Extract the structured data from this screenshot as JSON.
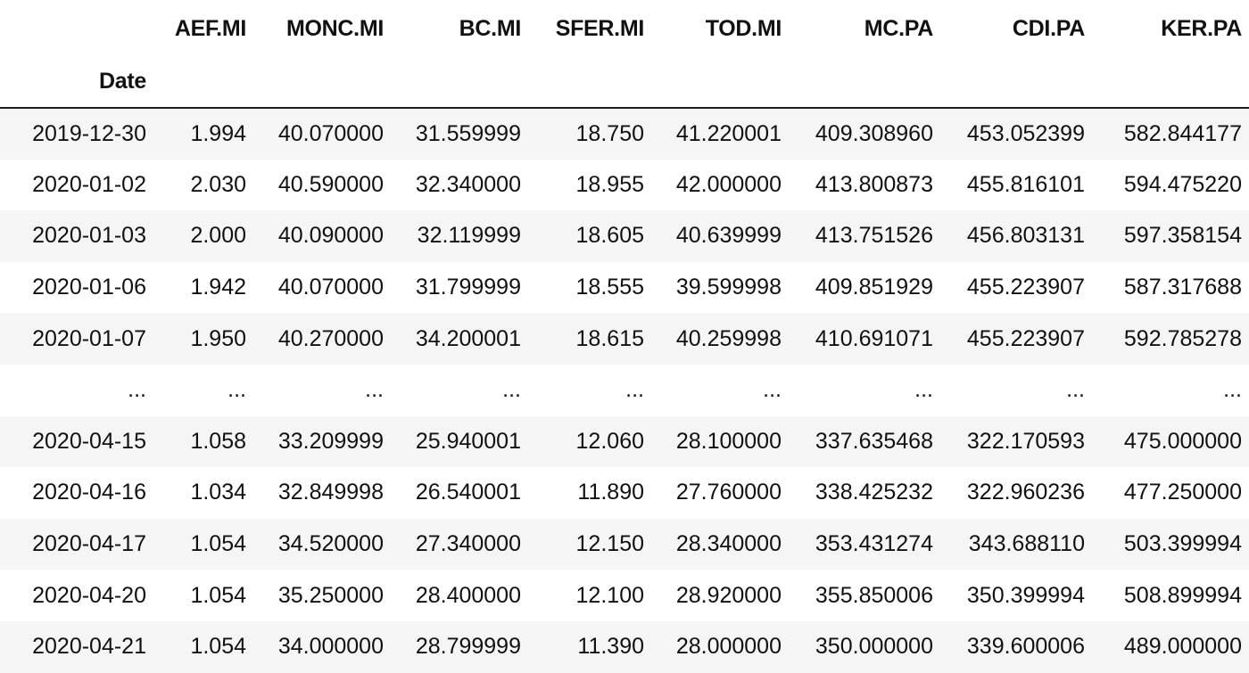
{
  "table": {
    "index_name": "Date",
    "columns": [
      "AEF.MI",
      "MONC.MI",
      "BC.MI",
      "SFER.MI",
      "TOD.MI",
      "MC.PA",
      "CDI.PA",
      "KER.PA"
    ],
    "rows": [
      {
        "index": "2019-12-30",
        "values": [
          "1.994",
          "40.070000",
          "31.559999",
          "18.750",
          "41.220001",
          "409.308960",
          "453.052399",
          "582.844177"
        ]
      },
      {
        "index": "2020-01-02",
        "values": [
          "2.030",
          "40.590000",
          "32.340000",
          "18.955",
          "42.000000",
          "413.800873",
          "455.816101",
          "594.475220"
        ]
      },
      {
        "index": "2020-01-03",
        "values": [
          "2.000",
          "40.090000",
          "32.119999",
          "18.605",
          "40.639999",
          "413.751526",
          "456.803131",
          "597.358154"
        ]
      },
      {
        "index": "2020-01-06",
        "values": [
          "1.942",
          "40.070000",
          "31.799999",
          "18.555",
          "39.599998",
          "409.851929",
          "455.223907",
          "587.317688"
        ]
      },
      {
        "index": "2020-01-07",
        "values": [
          "1.950",
          "40.270000",
          "34.200001",
          "18.615",
          "40.259998",
          "410.691071",
          "455.223907",
          "592.785278"
        ]
      },
      {
        "index": "...",
        "values": [
          "...",
          "...",
          "...",
          "...",
          "...",
          "...",
          "...",
          "..."
        ]
      },
      {
        "index": "2020-04-15",
        "values": [
          "1.058",
          "33.209999",
          "25.940001",
          "12.060",
          "28.100000",
          "337.635468",
          "322.170593",
          "475.000000"
        ]
      },
      {
        "index": "2020-04-16",
        "values": [
          "1.034",
          "32.849998",
          "26.540001",
          "11.890",
          "27.760000",
          "338.425232",
          "322.960236",
          "477.250000"
        ]
      },
      {
        "index": "2020-04-17",
        "values": [
          "1.054",
          "34.520000",
          "27.340000",
          "12.150",
          "28.340000",
          "353.431274",
          "343.688110",
          "503.399994"
        ]
      },
      {
        "index": "2020-04-20",
        "values": [
          "1.054",
          "35.250000",
          "28.400000",
          "12.100",
          "28.920000",
          "355.850006",
          "350.399994",
          "508.899994"
        ]
      },
      {
        "index": "2020-04-21",
        "values": [
          "1.054",
          "34.000000",
          "28.799999",
          "11.390",
          "28.000000",
          "350.000000",
          "339.600006",
          "489.000000"
        ]
      }
    ]
  }
}
